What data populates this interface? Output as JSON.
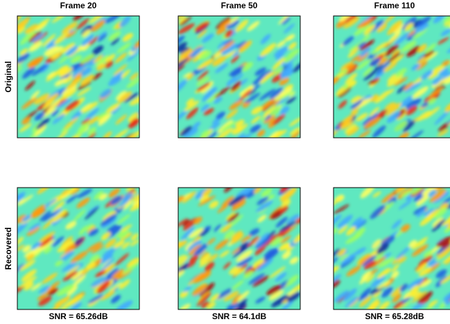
{
  "columns": [
    "Frame 20",
    "Frame 50",
    "Frame 110"
  ],
  "rows": [
    "Original",
    "Recovered"
  ],
  "snr": [
    "SNR = 65.26dB",
    "SNR = 64.1dB",
    "SNR = 65.28dB"
  ]
}
